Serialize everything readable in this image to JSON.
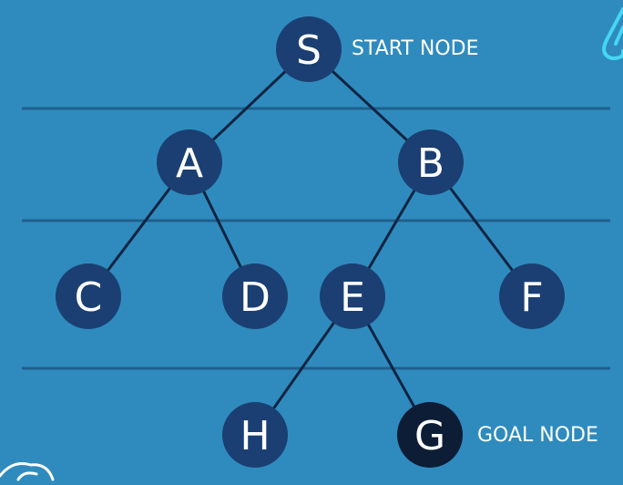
{
  "colors": {
    "background": "#2f8bbd",
    "node": "#1b3f72",
    "goal_node": "#0d1d36",
    "edge": "#0f2442",
    "rule": "#1f5f8d",
    "accent": "#45d7f2"
  },
  "nodes": [
    {
      "id": "S",
      "label": "S",
      "goal": false
    },
    {
      "id": "A",
      "label": "A",
      "goal": false
    },
    {
      "id": "B",
      "label": "B",
      "goal": false
    },
    {
      "id": "C",
      "label": "C",
      "goal": false
    },
    {
      "id": "D",
      "label": "D",
      "goal": false
    },
    {
      "id": "E",
      "label": "E",
      "goal": false
    },
    {
      "id": "F",
      "label": "F",
      "goal": false
    },
    {
      "id": "H",
      "label": "H",
      "goal": false
    },
    {
      "id": "G",
      "label": "G",
      "goal": true
    }
  ],
  "edges": [
    [
      "S",
      "A"
    ],
    [
      "S",
      "B"
    ],
    [
      "A",
      "C"
    ],
    [
      "A",
      "D"
    ],
    [
      "B",
      "E"
    ],
    [
      "B",
      "F"
    ],
    [
      "E",
      "H"
    ],
    [
      "E",
      "G"
    ]
  ],
  "annotations": {
    "start": "START NODE",
    "goal": "GOAL NODE"
  }
}
